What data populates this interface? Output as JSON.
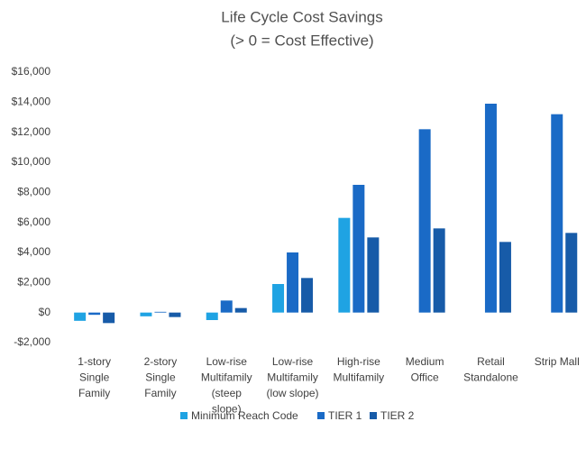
{
  "chart_data": {
    "type": "bar",
    "title": [
      "Life Cycle Cost Savings",
      "(> 0 = Cost Effective)"
    ],
    "categories": [
      [
        "1-story",
        "Single",
        "Family"
      ],
      [
        "2-story",
        "Single",
        "Family"
      ],
      [
        "Low-rise",
        "Multifamily",
        "(steep",
        "slope)"
      ],
      [
        "Low-rise",
        "Multifamily",
        "(low slope)"
      ],
      [
        "High-rise",
        "Multifamily"
      ],
      [
        "Medium",
        "Office"
      ],
      [
        "Retail",
        "Standalone"
      ],
      [
        "Strip Mall"
      ]
    ],
    "series": [
      {
        "name": "Minimum Reach Code",
        "color": "#1fa3e3",
        "values": [
          -550,
          -250,
          -500,
          1900,
          6300,
          null,
          null,
          null
        ]
      },
      {
        "name": "TIER 1",
        "color": "#1a6ac6",
        "values": [
          -150,
          50,
          800,
          4000,
          8500,
          12200,
          13900,
          13200
        ]
      },
      {
        "name": "TIER 2",
        "color": "#175ba8",
        "values": [
          -700,
          -300,
          300,
          2300,
          5000,
          5600,
          4700,
          5300
        ]
      }
    ],
    "ylim": [
      -2000,
      16000
    ],
    "yticks": [
      {
        "value": -2000,
        "label": "-$2,000"
      },
      {
        "value": 0,
        "label": "$0"
      },
      {
        "value": 2000,
        "label": "$2,000"
      },
      {
        "value": 4000,
        "label": "$4,000"
      },
      {
        "value": 6000,
        "label": "$6,000"
      },
      {
        "value": 8000,
        "label": "$8,000"
      },
      {
        "value": 10000,
        "label": "$10,000"
      },
      {
        "value": 12000,
        "label": "$12,000"
      },
      {
        "value": 14000,
        "label": "$14,000"
      },
      {
        "value": 16000,
        "label": "$16,000"
      }
    ],
    "grid": false,
    "legend": "bottom"
  }
}
